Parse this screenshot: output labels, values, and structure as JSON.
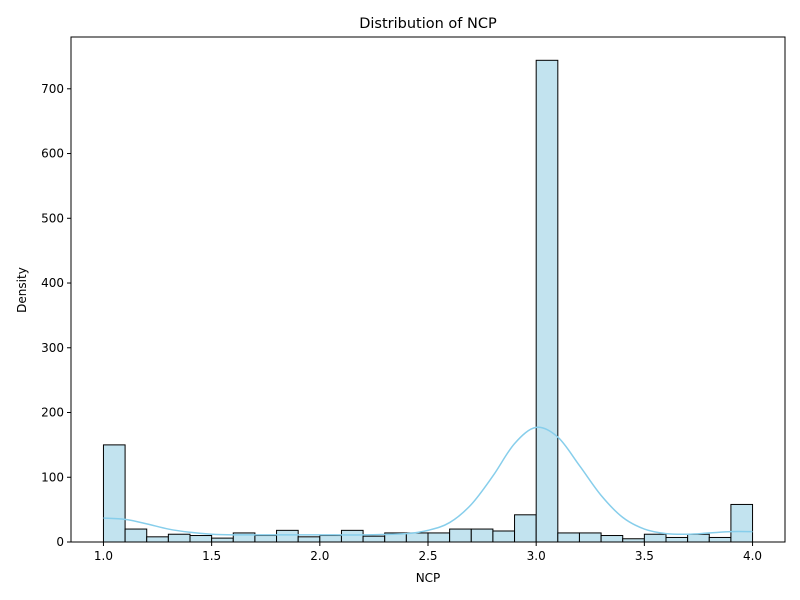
{
  "chart_data": {
    "type": "bar",
    "title": "Distribution of NCP",
    "xlabel": "NCP",
    "ylabel": "Density",
    "xlim": [
      0.85,
      4.15
    ],
    "ylim": [
      0,
      780
    ],
    "xticks": [
      "1.0",
      "1.5",
      "2.0",
      "2.5",
      "3.0",
      "3.5",
      "4.0"
    ],
    "yticks": [
      "0",
      "100",
      "200",
      "300",
      "400",
      "500",
      "600",
      "700"
    ],
    "grid": false,
    "colors": {
      "bar_fill": "#c2e3ef",
      "bar_edge": "#000000",
      "kde_line": "#87ceeb"
    },
    "bins": {
      "start": 1.0,
      "end": 4.0,
      "count": 30
    },
    "values": [
      150,
      20,
      8,
      12,
      10,
      6,
      14,
      10,
      18,
      8,
      10,
      18,
      9,
      14,
      14,
      14,
      20,
      20,
      17,
      42,
      744,
      14,
      14,
      10,
      5,
      12,
      7,
      12,
      7,
      58
    ],
    "kde": {
      "x": [
        1.0,
        1.1,
        1.2,
        1.3,
        1.4,
        1.5,
        1.6,
        1.8,
        2.0,
        2.2,
        2.4,
        2.5,
        2.6,
        2.7,
        2.8,
        2.9,
        3.0,
        3.1,
        3.2,
        3.3,
        3.4,
        3.5,
        3.6,
        3.7,
        3.8,
        3.9,
        4.0
      ],
      "y": [
        37,
        35,
        28,
        20,
        15,
        12,
        11,
        11,
        11,
        11,
        13,
        18,
        30,
        58,
        102,
        152,
        177,
        162,
        118,
        72,
        38,
        20,
        13,
        12,
        14,
        16,
        16
      ]
    }
  }
}
